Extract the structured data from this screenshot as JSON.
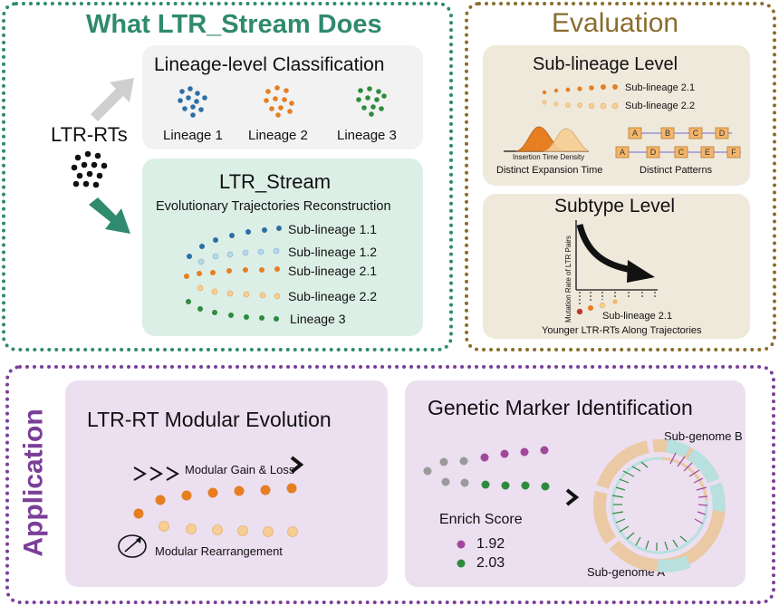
{
  "top_left": {
    "title": "What LTR_Stream Does",
    "input_label": "LTR-RTs",
    "classification": {
      "title": "Lineage-level Classification",
      "lineages": [
        "Lineage 1",
        "Lineage 2",
        "Lineage 3"
      ]
    },
    "stream": {
      "title": "LTR_Stream",
      "subtitle": "Evolutionary Trajectories Reconstruction",
      "trajectories": [
        "Sub-lineage 1.1",
        "Sub-lineage 1.2",
        "Sub-lineage 2.1",
        "Sub-lineage 2.2",
        "Lineage 3"
      ]
    }
  },
  "evaluation": {
    "title": "Evaluation",
    "sub_lineage": {
      "title": "Sub-lineage Level",
      "labels": [
        "Sub-lineage 2.1",
        "Sub-lineage 2.2"
      ],
      "density_axis": "Insertion Time Density",
      "density_caption": "Distinct Expansion Time",
      "pattern_row1": [
        "A",
        "B",
        "C",
        "D"
      ],
      "pattern_row2": [
        "A",
        "D",
        "C",
        "E",
        "F"
      ],
      "pattern_caption": "Distinct Patterns"
    },
    "subtype": {
      "title": "Subtype Level",
      "y_axis": "Mutation Rate of LTR Pairs",
      "marker_label": "Sub-lineage 2.1",
      "caption": "Younger LTR-RTs Along Trajectories"
    }
  },
  "application": {
    "title": "Application",
    "modular": {
      "title": "LTR-RT Modular Evolution",
      "gain_loss": "Modular Gain & Loss",
      "rearrangement": "Modular Rearrangement"
    },
    "genetic": {
      "title": "Genetic Marker Identification",
      "enrich_label": "Enrich Score",
      "scores": [
        "1.92",
        "2.03"
      ],
      "subgenome_b": "Sub-genome B",
      "subgenome_a": "Sub-genome A"
    }
  },
  "colors": {
    "green_title": "#2f8a6e",
    "brown_title": "#8a6d2c",
    "purple_title": "#7b3f98",
    "blue": "#2c6fa6",
    "light_blue": "#b8d8ea",
    "orange": "#e67e22",
    "light_orange": "#f6cf94",
    "green": "#2e8b3e",
    "magenta": "#a0489a",
    "grey": "#9a9a9a"
  }
}
